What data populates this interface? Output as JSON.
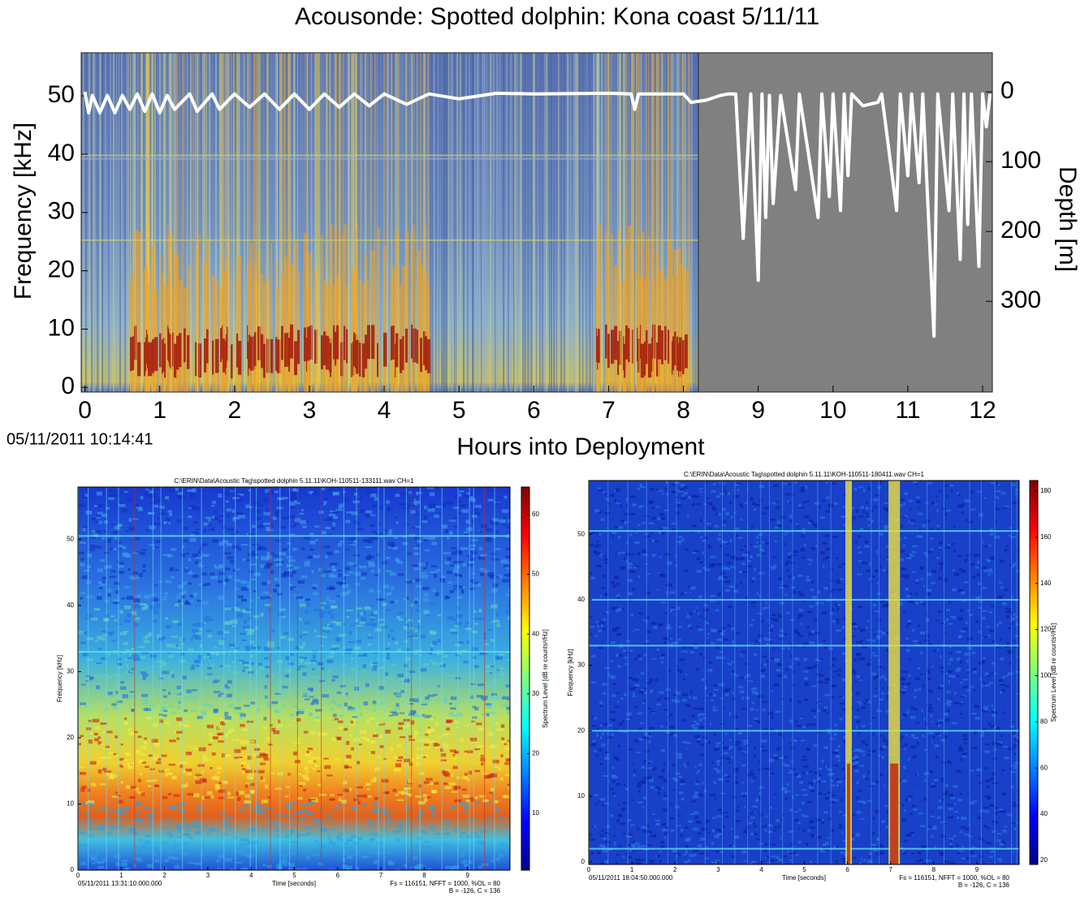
{
  "title": "Acousonde: Spotted dolphin: Kona coast 5/11/11",
  "chart_data": [
    {
      "type": "spectrogram",
      "xlabel": "Hours into Deployment",
      "ylabel": "Frequency [kHz]",
      "y2label": "Depth [m]",
      "timestamp": "05/11/2011 10:14:41",
      "xlim": [
        -0.05,
        12.13
      ],
      "xticks": [
        0,
        1,
        2,
        3,
        4,
        5,
        6,
        7,
        8,
        9,
        10,
        11,
        12
      ],
      "ylim": [
        -0.8,
        57.4
      ],
      "yticks": [
        0,
        10,
        20,
        30,
        40,
        50
      ],
      "y2lim": [
        430,
        -56
      ],
      "y2ticks": [
        0,
        100,
        200,
        300
      ],
      "depth": {
        "axis": "y2",
        "color": "#ffffff",
        "x": [
          0,
          0.05,
          0.1,
          0.2,
          0.3,
          0.4,
          0.5,
          0.6,
          0.7,
          0.8,
          0.9,
          1.0,
          1.1,
          1.2,
          1.4,
          1.5,
          1.7,
          1.8,
          2.0,
          2.2,
          2.4,
          2.6,
          2.8,
          3.0,
          3.2,
          3.4,
          3.6,
          3.8,
          4.0,
          4.3,
          4.6,
          5.0,
          5.5,
          6.0,
          7.0,
          7.3,
          7.35,
          7.4,
          8.0,
          8.1,
          8.3,
          8.5,
          8.6,
          8.7,
          8.8,
          8.9,
          9.0,
          9.05,
          9.1,
          9.15,
          9.2,
          9.3,
          9.5,
          9.55,
          9.8,
          9.85,
          9.95,
          10.0,
          10.1,
          10.15,
          10.2,
          10.25,
          10.4,
          10.6,
          10.65,
          10.85,
          10.9,
          11.0,
          11.05,
          11.15,
          11.2,
          11.35,
          11.4,
          11.55,
          11.6,
          11.7,
          11.75,
          11.8,
          11.85,
          11.95,
          12.0,
          12.05,
          12.1
        ],
        "values": [
          0,
          30,
          5,
          30,
          5,
          30,
          5,
          25,
          3,
          28,
          3,
          30,
          5,
          25,
          3,
          28,
          3,
          25,
          3,
          22,
          3,
          25,
          3,
          25,
          3,
          22,
          3,
          20,
          3,
          18,
          3,
          10,
          2,
          3,
          2,
          3,
          25,
          3,
          3,
          15,
          12,
          5,
          3,
          3,
          210,
          3,
          270,
          3,
          180,
          5,
          160,
          5,
          140,
          3,
          180,
          3,
          150,
          3,
          170,
          3,
          120,
          3,
          20,
          15,
          3,
          170,
          3,
          120,
          3,
          130,
          3,
          350,
          3,
          170,
          3,
          240,
          3,
          190,
          3,
          250,
          3,
          50,
          3
        ]
      }
    },
    {
      "type": "spectrogram",
      "title": "C:\\ERIN\\Data\\Acoustic Tag\\spotted dolphin 5.11.11\\KOH-110511-133111.wav CH=1",
      "xlabel": "Time [seconds]",
      "ylabel": "Frequency [kHz]",
      "clabel": "Spectrum Level [dB re counts²/Hz]",
      "timestamp": "05/11/2011 13:31:10.000.000",
      "footer": [
        "Fs = 116151, NFFT = 1000, %OL = 80",
        "B = -126, C = 136"
      ],
      "xlim": [
        0,
        9.98
      ],
      "xticks": [
        0,
        1,
        2,
        3,
        4,
        5,
        6,
        7,
        8,
        9
      ],
      "ylim": [
        0,
        57.9
      ],
      "yticks": [
        0,
        10,
        20,
        30,
        40,
        50
      ],
      "clim": [
        0.5,
        64.6
      ],
      "cticks": [
        10,
        20,
        30,
        40,
        50,
        60
      ]
    },
    {
      "type": "spectrogram",
      "title": "C:\\ERIN\\Data\\Acoustic Tag\\spotted dolphin 5.11.11\\KOH-110511-180411.wav CH=1",
      "xlabel": "Time [seconds]",
      "ylabel": "Frequency [kHz]",
      "clabel": "Spectrum Level [dB re counts²/Hz]",
      "timestamp": "05/11/2011 18:04:50.000.000",
      "footer": [
        "Fs = 116151, NFFT = 1000, %OL = 80",
        "B = -126, C = 136"
      ],
      "xlim": [
        0,
        9.98
      ],
      "xticks": [
        0,
        1,
        2,
        3,
        4,
        5,
        6,
        7,
        8,
        9
      ],
      "ylim": [
        -0.4,
        58.2
      ],
      "yticks": [
        0,
        10,
        20,
        30,
        40,
        50
      ],
      "clim": [
        18.2,
        184.6
      ],
      "cticks": [
        20,
        40,
        60,
        80,
        100,
        120,
        140,
        160,
        180
      ]
    }
  ]
}
